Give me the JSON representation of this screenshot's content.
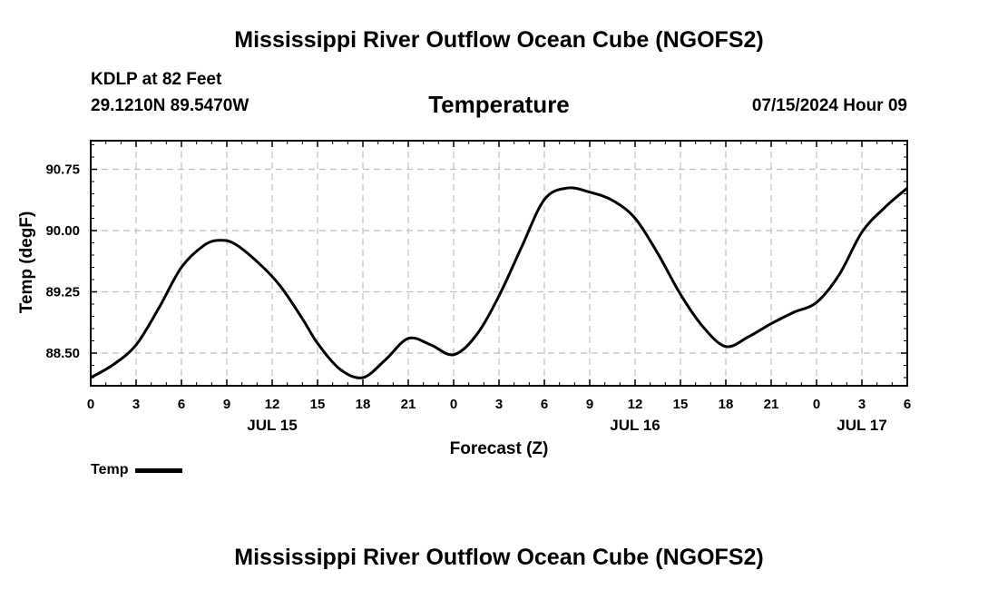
{
  "header": {
    "title": "Mississippi River Outflow Ocean Cube (NGOFS2)",
    "station": "KDLP at 82 Feet",
    "coords": "29.1210N  89.5470W",
    "subtitle": "Temperature",
    "datetime": "07/15/2024 Hour 09"
  },
  "footer": {
    "title": "Mississippi River Outflow Ocean Cube (NGOFS2)"
  },
  "legend": {
    "label": "Temp"
  },
  "colors": {
    "line": "#000000",
    "grid": "#c0c0c0"
  },
  "chart_data": {
    "type": "line",
    "title": "Temperature",
    "xlabel": "Forecast (Z)",
    "ylabel": "Temp (degF)",
    "xlim": [
      0,
      54
    ],
    "ylim": [
      88.1,
      91.1
    ],
    "yticks": [
      88.5,
      89.25,
      90.0,
      90.75
    ],
    "ytick_labels": [
      "88.50",
      "89.25",
      "90.00",
      "90.75"
    ],
    "xticks": [
      0,
      3,
      6,
      9,
      12,
      15,
      18,
      21,
      24,
      27,
      30,
      33,
      36,
      39,
      42,
      45,
      48,
      51,
      54
    ],
    "xtick_labels": [
      "0",
      "3",
      "6",
      "9",
      "12",
      "15",
      "18",
      "21",
      "0",
      "3",
      "6",
      "9",
      "12",
      "15",
      "18",
      "21",
      "0",
      "3",
      "6"
    ],
    "day_labels": [
      {
        "x": 12,
        "label": "JUL 15"
      },
      {
        "x": 36,
        "label": "JUL 16"
      },
      {
        "x": 51,
        "label": "JUL 17"
      }
    ],
    "grid": true,
    "series": [
      {
        "name": "Temp",
        "x": [
          0,
          1.5,
          3,
          4.5,
          6,
          7.5,
          8.5,
          9.5,
          11,
          12.5,
          14,
          15,
          16.5,
          18,
          19.5,
          21,
          22.5,
          24,
          25.5,
          27,
          28.5,
          30,
          31.5,
          33,
          34.5,
          36,
          37.5,
          39,
          40.5,
          42,
          43.5,
          45,
          46.5,
          48,
          49.5,
          51,
          52.5,
          54
        ],
        "values": [
          88.2,
          88.36,
          88.6,
          89.05,
          89.55,
          89.82,
          89.88,
          89.84,
          89.62,
          89.33,
          88.92,
          88.62,
          88.3,
          88.2,
          88.42,
          88.68,
          88.6,
          88.48,
          88.72,
          89.2,
          89.8,
          90.38,
          90.52,
          90.47,
          90.37,
          90.15,
          89.72,
          89.22,
          88.82,
          88.58,
          88.7,
          88.86,
          89.0,
          89.12,
          89.46,
          89.98,
          90.28,
          90.52
        ]
      }
    ]
  }
}
